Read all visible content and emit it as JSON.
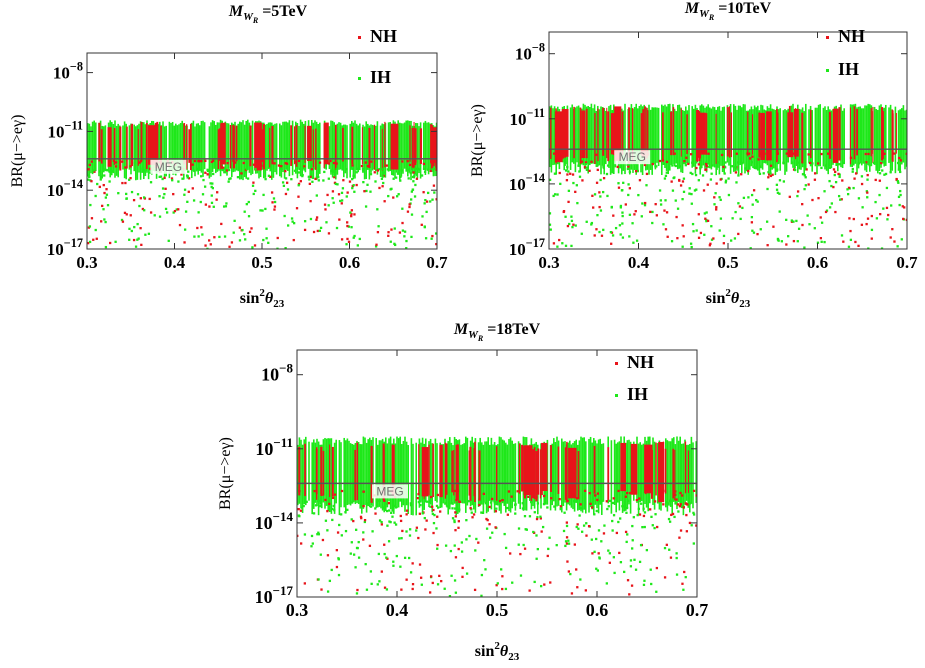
{
  "chart_data": [
    {
      "type": "scatter",
      "title": "M_W_R = 5TeV",
      "title_parts": {
        "main": "M",
        "sub": "W",
        "subsub": "R",
        "rest": " =5TeV"
      },
      "xlabel": "sin²θ₂₃",
      "xlabel_parts": {
        "base": "sin",
        "sup": "2",
        "theta": "θ",
        "sub": "23"
      },
      "ylabel": "BR(μ−>eγ)",
      "y_scale": "log",
      "xlim": [
        0.3,
        0.7
      ],
      "ylim_log10": [
        -17,
        -7
      ],
      "x_ticks": [
        "0.3",
        "0.4",
        "0.5",
        "0.6",
        "0.7"
      ],
      "x_tick_values": [
        0.3,
        0.4,
        0.5,
        0.6,
        0.7
      ],
      "y_ticks": [
        {
          "base": "10",
          "exp": "−8",
          "value": -8
        },
        {
          "base": "10",
          "exp": "−11",
          "value": -11
        },
        {
          "base": "10",
          "exp": "−14",
          "value": -14
        },
        {
          "base": "10",
          "exp": "−17",
          "value": -17
        }
      ],
      "reference_line": {
        "label": "MEG",
        "log10": -12.4
      },
      "legend": [
        {
          "name": "NH",
          "color": "#e8141a"
        },
        {
          "name": "IH",
          "color": "#1ee81a"
        }
      ],
      "series": [
        {
          "name": "NH",
          "color": "#e8141a",
          "x_range": [
            0.3,
            0.7
          ],
          "log10_range": [
            -16.9,
            -10.6
          ],
          "dense_band_log10": [
            -12.5,
            -10.5
          ]
        },
        {
          "name": "IH",
          "color": "#1ee81a",
          "x_range": [
            0.3,
            0.7
          ],
          "log10_range": [
            -17.0,
            -10.4
          ],
          "dense_band_log10": [
            -12.9,
            -10.4
          ]
        }
      ]
    },
    {
      "type": "scatter",
      "title": "M_W_R = 10TeV",
      "title_parts": {
        "main": "M",
        "sub": "W",
        "subsub": "R",
        "rest": " =10TeV"
      },
      "xlabel": "sin²θ₂₃",
      "xlabel_parts": {
        "base": "sin",
        "sup": "2",
        "theta": "θ",
        "sub": "23"
      },
      "ylabel": "BR(μ−>eγ)",
      "y_scale": "log",
      "xlim": [
        0.3,
        0.7
      ],
      "ylim_log10": [
        -17,
        -7
      ],
      "x_ticks": [
        "0.3",
        "0.4",
        "0.5",
        "0.6",
        "0.7"
      ],
      "x_tick_values": [
        0.3,
        0.4,
        0.5,
        0.6,
        0.7
      ],
      "y_ticks": [
        {
          "base": "10",
          "exp": "−8",
          "value": -8
        },
        {
          "base": "10",
          "exp": "−11",
          "value": -11
        },
        {
          "base": "10",
          "exp": "−14",
          "value": -14
        },
        {
          "base": "10",
          "exp": "−17",
          "value": -17
        }
      ],
      "reference_line": {
        "label": "MEG",
        "log10": -12.4
      },
      "legend": [
        {
          "name": "NH",
          "color": "#e8141a"
        },
        {
          "name": "IH",
          "color": "#1ee81a"
        }
      ],
      "series": [
        {
          "name": "NH",
          "color": "#e8141a",
          "x_range": [
            0.3,
            0.7
          ],
          "log10_range": [
            -16.9,
            -10.4
          ],
          "dense_band_log10": [
            -12.6,
            -10.4
          ]
        },
        {
          "name": "IH",
          "color": "#1ee81a",
          "x_range": [
            0.3,
            0.7
          ],
          "log10_range": [
            -17.0,
            -10.3
          ],
          "dense_band_log10": [
            -13.0,
            -10.3
          ]
        }
      ]
    },
    {
      "type": "scatter",
      "title": "M_W_R = 18TeV",
      "title_parts": {
        "main": "M",
        "sub": "W",
        "subsub": "R",
        "rest": " =18TeV"
      },
      "xlabel": "sin²θ₂₃",
      "xlabel_parts": {
        "base": "sin",
        "sup": "2",
        "theta": "θ",
        "sub": "23"
      },
      "ylabel": "BR(μ−>eγ)",
      "y_scale": "log",
      "xlim": [
        0.3,
        0.7
      ],
      "ylim_log10": [
        -17,
        -7
      ],
      "x_ticks": [
        "0.3",
        "0.4",
        "0.5",
        "0.6",
        "0.7"
      ],
      "x_tick_values": [
        0.3,
        0.4,
        0.5,
        0.6,
        0.7
      ],
      "y_ticks": [
        {
          "base": "10",
          "exp": "−8",
          "value": -8
        },
        {
          "base": "10",
          "exp": "−11",
          "value": -11
        },
        {
          "base": "10",
          "exp": "−14",
          "value": -14
        },
        {
          "base": "10",
          "exp": "−17",
          "value": -17
        }
      ],
      "reference_line": {
        "label": "MEG",
        "log10": -12.4
      },
      "legend": [
        {
          "name": "NH",
          "color": "#e8141a"
        },
        {
          "name": "IH",
          "color": "#1ee81a"
        }
      ],
      "series": [
        {
          "name": "NH",
          "color": "#e8141a",
          "x_range": [
            0.3,
            0.7
          ],
          "log10_range": [
            -16.9,
            -10.7
          ],
          "dense_band_log10": [
            -12.7,
            -10.7
          ]
        },
        {
          "name": "IH",
          "color": "#1ee81a",
          "x_range": [
            0.3,
            0.7
          ],
          "log10_range": [
            -17.0,
            -10.5
          ],
          "dense_band_log10": [
            -13.1,
            -10.5
          ]
        }
      ]
    }
  ]
}
